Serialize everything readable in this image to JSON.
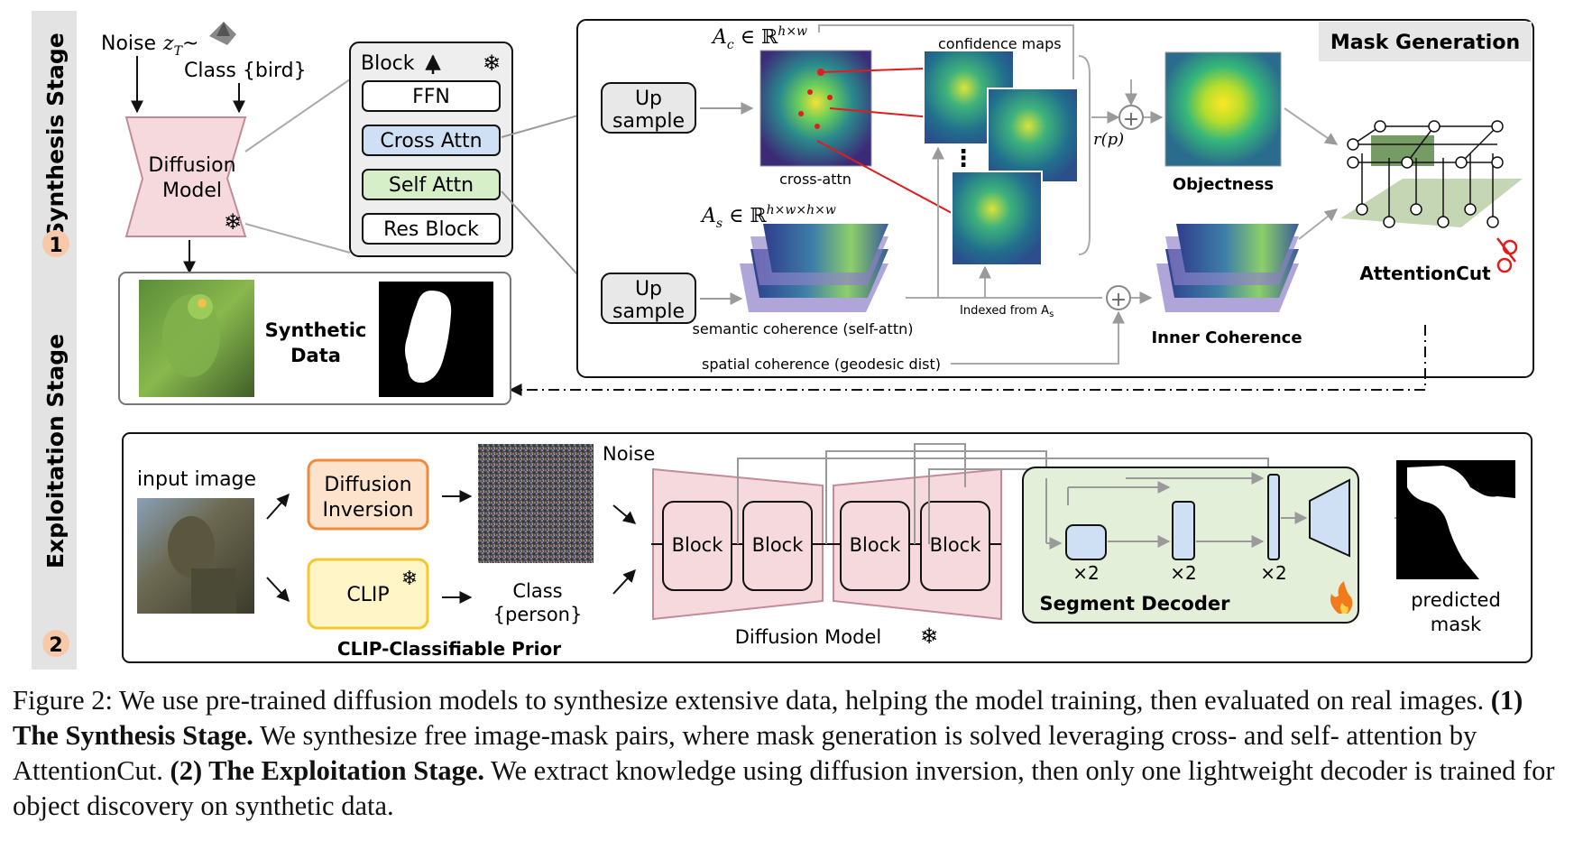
{
  "stage_labels": {
    "synthesis": {
      "num": "1",
      "text": "Synthesis Stage"
    },
    "exploitation": {
      "num": "2",
      "text": "Exploitation Stage"
    }
  },
  "synthesis": {
    "noise_label": "Noise",
    "noise_var": "z",
    "noise_sub": "T",
    "noise_tilde": "~",
    "class_label": "Class {bird}",
    "diffusion_model": [
      "Diffusion",
      "Model"
    ],
    "block_panel": {
      "title": "Block",
      "layers": [
        "FFN",
        "Cross Attn",
        "Self Attn",
        "Res Block"
      ]
    },
    "upsample_top": [
      "Up",
      "sample"
    ],
    "upsample_bottom": [
      "Up",
      "sample"
    ],
    "ac_sym": "A",
    "ac_sub": "c",
    "ac_rest": " ∈ ℝ",
    "ac_sup": "h×w",
    "as_sym": "A",
    "as_sub": "s",
    "as_rest": " ∈ ℝ",
    "as_sup": "h×w×h×w",
    "cross_attn_label": "cross-attn",
    "confidence_maps_label": "confidence maps",
    "dots": "⋮",
    "rp_label": "r(p)",
    "plus": "+",
    "objectness_label": "Objectness",
    "mask_generation_label": "Mask Generation",
    "attentioncut_label": "AttentionCut",
    "indexed_label": "Indexed from A",
    "indexed_sub": "s",
    "semantic_label": "semantic coherence (self-attn)",
    "spatial_label": "spatial coherence (geodesic dist)",
    "inner_coherence_label": "Inner Coherence",
    "synthetic_data_label": [
      "Synthetic",
      "Data"
    ]
  },
  "exploitation": {
    "input_image_label": "input image",
    "diffusion_inversion": [
      "Diffusion",
      "Inversion"
    ],
    "clip_label": "CLIP",
    "clip_prior_label": "CLIP-Classifiable Prior",
    "noise_label": "Noise",
    "class_label": [
      "Class",
      "{person}"
    ],
    "blocks": [
      "Block",
      "Block",
      "Block",
      "Block"
    ],
    "diffusion_model_label": "Diffusion Model",
    "multipliers": [
      "×2",
      "×2",
      "×2"
    ],
    "segment_decoder_label": "Segment Decoder",
    "predicted_mask_label": [
      "predicted",
      "mask"
    ]
  },
  "icons": {
    "frozen": "snowflake-icon",
    "trainable": "fire-icon",
    "cut": "scissors-icon"
  },
  "colors": {
    "diffusion_pink": "#f6d9dd",
    "cross_attn_blue": "#cfe0f4",
    "self_attn_green": "#d7efc9",
    "inversion_orange": "#f08a3c",
    "clip_yellow": "#ffe58a",
    "decoder_green": "#e3efd9",
    "connector_red": "#e21c1c"
  },
  "caption": {
    "lead": "Figure 2: We use pre-trained diffusion models to synthesize extensive data, helping the model training, then evaluated on real images. ",
    "bold1": "(1) The Synthesis Stage.",
    "mid": " We synthesize free image-mask pairs, where mask generation is solved leveraging cross- and self- attention by AttentionCut. ",
    "bold2": "(2) The Exploitation Stage.",
    "tail": " We extract knowledge using diffusion inversion, then only one lightweight decoder is trained for object discovery on synthetic data."
  }
}
